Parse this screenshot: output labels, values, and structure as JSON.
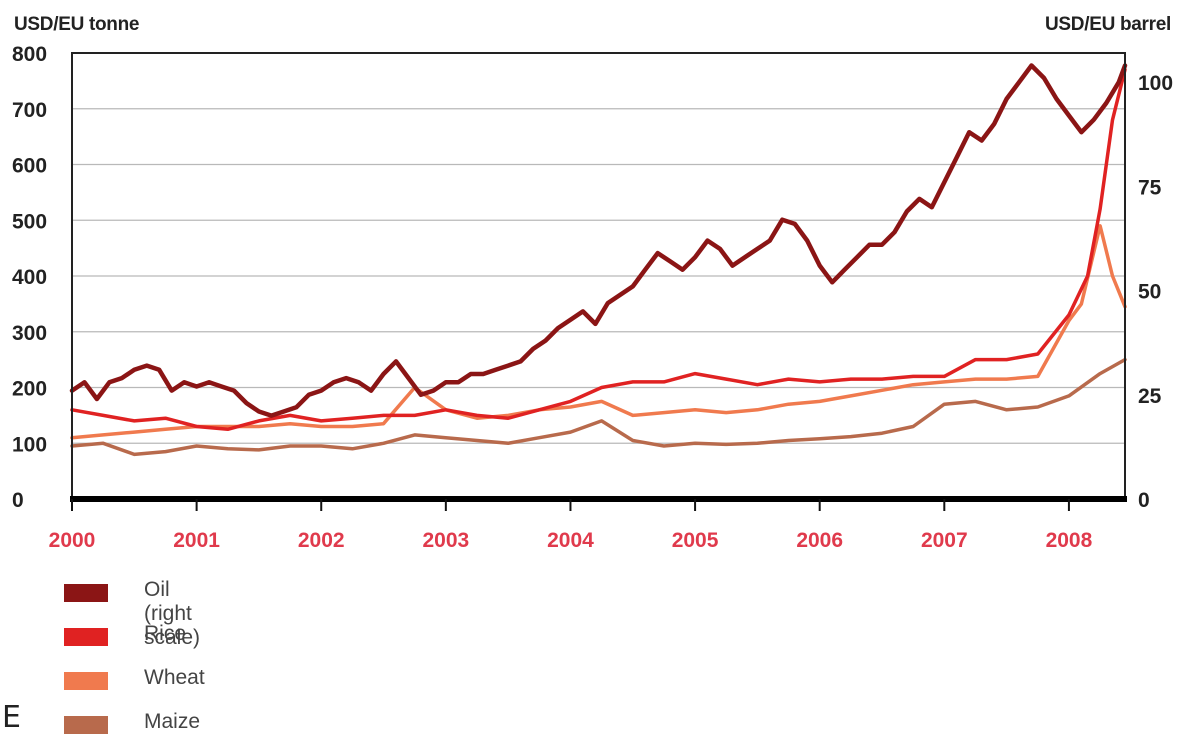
{
  "chart_data": {
    "type": "line",
    "left_axis_label": "USD/EU tonne",
    "right_axis_label": "USD/EU barrel",
    "y_left_range": [
      0,
      800
    ],
    "y_left_ticks": [
      0,
      100,
      200,
      300,
      400,
      500,
      600,
      700,
      800
    ],
    "y_right_range": [
      0,
      107
    ],
    "y_right_ticks": [
      0,
      25,
      50,
      75,
      100
    ],
    "x_range": [
      2000,
      2008.45
    ],
    "x_ticks": [
      "2000",
      "2001",
      "2002",
      "2003",
      "2004",
      "2005",
      "2006",
      "2007",
      "2008"
    ],
    "grid": true,
    "legend_position": "bottom-left",
    "series": [
      {
        "name": "Oil (right scale)",
        "axis": "right",
        "color": "#8b1515",
        "x": [
          2000.0,
          2000.1,
          2000.2,
          2000.3,
          2000.4,
          2000.5,
          2000.6,
          2000.7,
          2000.8,
          2000.9,
          2001.0,
          2001.1,
          2001.2,
          2001.3,
          2001.4,
          2001.5,
          2001.6,
          2001.7,
          2001.8,
          2001.9,
          2002.0,
          2002.1,
          2002.2,
          2002.3,
          2002.4,
          2002.5,
          2002.6,
          2002.7,
          2002.8,
          2002.9,
          2003.0,
          2003.1,
          2003.2,
          2003.3,
          2003.4,
          2003.5,
          2003.6,
          2003.7,
          2003.8,
          2003.9,
          2004.0,
          2004.1,
          2004.2,
          2004.3,
          2004.4,
          2004.5,
          2004.6,
          2004.7,
          2004.8,
          2004.9,
          2005.0,
          2005.1,
          2005.2,
          2005.3,
          2005.4,
          2005.5,
          2005.6,
          2005.7,
          2005.8,
          2005.9,
          2006.0,
          2006.1,
          2006.2,
          2006.3,
          2006.4,
          2006.5,
          2006.6,
          2006.7,
          2006.8,
          2006.9,
          2007.0,
          2007.1,
          2007.2,
          2007.3,
          2007.4,
          2007.5,
          2007.6,
          2007.7,
          2007.8,
          2007.9,
          2008.0,
          2008.1,
          2008.2,
          2008.3,
          2008.4,
          2008.45
        ],
        "values": [
          26,
          28,
          24,
          28,
          29,
          31,
          32,
          31,
          26,
          28,
          27,
          28,
          27,
          26,
          23,
          21,
          20,
          21,
          22,
          25,
          26,
          28,
          29,
          28,
          26,
          30,
          33,
          29,
          25,
          26,
          28,
          28,
          30,
          30,
          31,
          32,
          33,
          36,
          38,
          41,
          43,
          45,
          42,
          47,
          49,
          51,
          55,
          59,
          57,
          55,
          58,
          62,
          60,
          56,
          58,
          60,
          62,
          67,
          66,
          62,
          56,
          52,
          55,
          58,
          61,
          61,
          64,
          69,
          72,
          70,
          76,
          82,
          88,
          86,
          90,
          96,
          100,
          104,
          101,
          96,
          92,
          88,
          91,
          95,
          100,
          104
        ]
      },
      {
        "name": "Rice",
        "axis": "left",
        "color": "#e02222",
        "x": [
          2000.0,
          2000.25,
          2000.5,
          2000.75,
          2001.0,
          2001.25,
          2001.5,
          2001.75,
          2002.0,
          2002.25,
          2002.5,
          2002.75,
          2003.0,
          2003.25,
          2003.5,
          2003.75,
          2004.0,
          2004.25,
          2004.5,
          2004.75,
          2005.0,
          2005.25,
          2005.5,
          2005.75,
          2006.0,
          2006.25,
          2006.5,
          2006.75,
          2007.0,
          2007.25,
          2007.5,
          2007.75,
          2008.0,
          2008.15,
          2008.25,
          2008.35,
          2008.45
        ],
        "values": [
          160,
          150,
          140,
          145,
          130,
          125,
          140,
          150,
          140,
          145,
          150,
          150,
          160,
          150,
          145,
          160,
          175,
          200,
          210,
          210,
          225,
          215,
          205,
          215,
          210,
          215,
          215,
          220,
          220,
          250,
          250,
          260,
          330,
          400,
          520,
          680,
          770
        ]
      },
      {
        "name": "Wheat",
        "axis": "left",
        "color": "#f07a4e",
        "x": [
          2000.0,
          2000.25,
          2000.5,
          2000.75,
          2001.0,
          2001.25,
          2001.5,
          2001.75,
          2002.0,
          2002.25,
          2002.5,
          2002.75,
          2003.0,
          2003.25,
          2003.5,
          2003.75,
          2004.0,
          2004.25,
          2004.5,
          2004.75,
          2005.0,
          2005.25,
          2005.5,
          2005.75,
          2006.0,
          2006.25,
          2006.5,
          2006.75,
          2007.0,
          2007.25,
          2007.5,
          2007.75,
          2008.0,
          2008.1,
          2008.25,
          2008.35,
          2008.45
        ],
        "values": [
          110,
          115,
          120,
          125,
          130,
          130,
          130,
          135,
          130,
          130,
          135,
          200,
          160,
          145,
          150,
          160,
          165,
          175,
          150,
          155,
          160,
          155,
          160,
          170,
          175,
          185,
          195,
          205,
          210,
          215,
          215,
          220,
          320,
          350,
          490,
          400,
          345
        ]
      },
      {
        "name": "Maize",
        "axis": "left",
        "color": "#b86a4c",
        "x": [
          2000.0,
          2000.25,
          2000.5,
          2000.75,
          2001.0,
          2001.25,
          2001.5,
          2001.75,
          2002.0,
          2002.25,
          2002.5,
          2002.75,
          2003.0,
          2003.25,
          2003.5,
          2003.75,
          2004.0,
          2004.25,
          2004.5,
          2004.75,
          2005.0,
          2005.25,
          2005.5,
          2005.75,
          2006.0,
          2006.25,
          2006.5,
          2006.75,
          2007.0,
          2007.25,
          2007.5,
          2007.75,
          2008.0,
          2008.25,
          2008.45
        ],
        "values": [
          95,
          100,
          80,
          85,
          95,
          90,
          88,
          95,
          95,
          90,
          100,
          115,
          110,
          105,
          100,
          110,
          120,
          140,
          105,
          95,
          100,
          98,
          100,
          105,
          108,
          112,
          118,
          130,
          170,
          175,
          160,
          165,
          185,
          225,
          250
        ]
      }
    ]
  },
  "legend": [
    {
      "label": "Oil (right scale)",
      "color": "#8b1515"
    },
    {
      "label": "Rice",
      "color": "#e02222"
    },
    {
      "label": "Wheat",
      "color": "#f07a4e"
    },
    {
      "label": "Maize",
      "color": "#b86a4c"
    }
  ],
  "stray_text": "E"
}
